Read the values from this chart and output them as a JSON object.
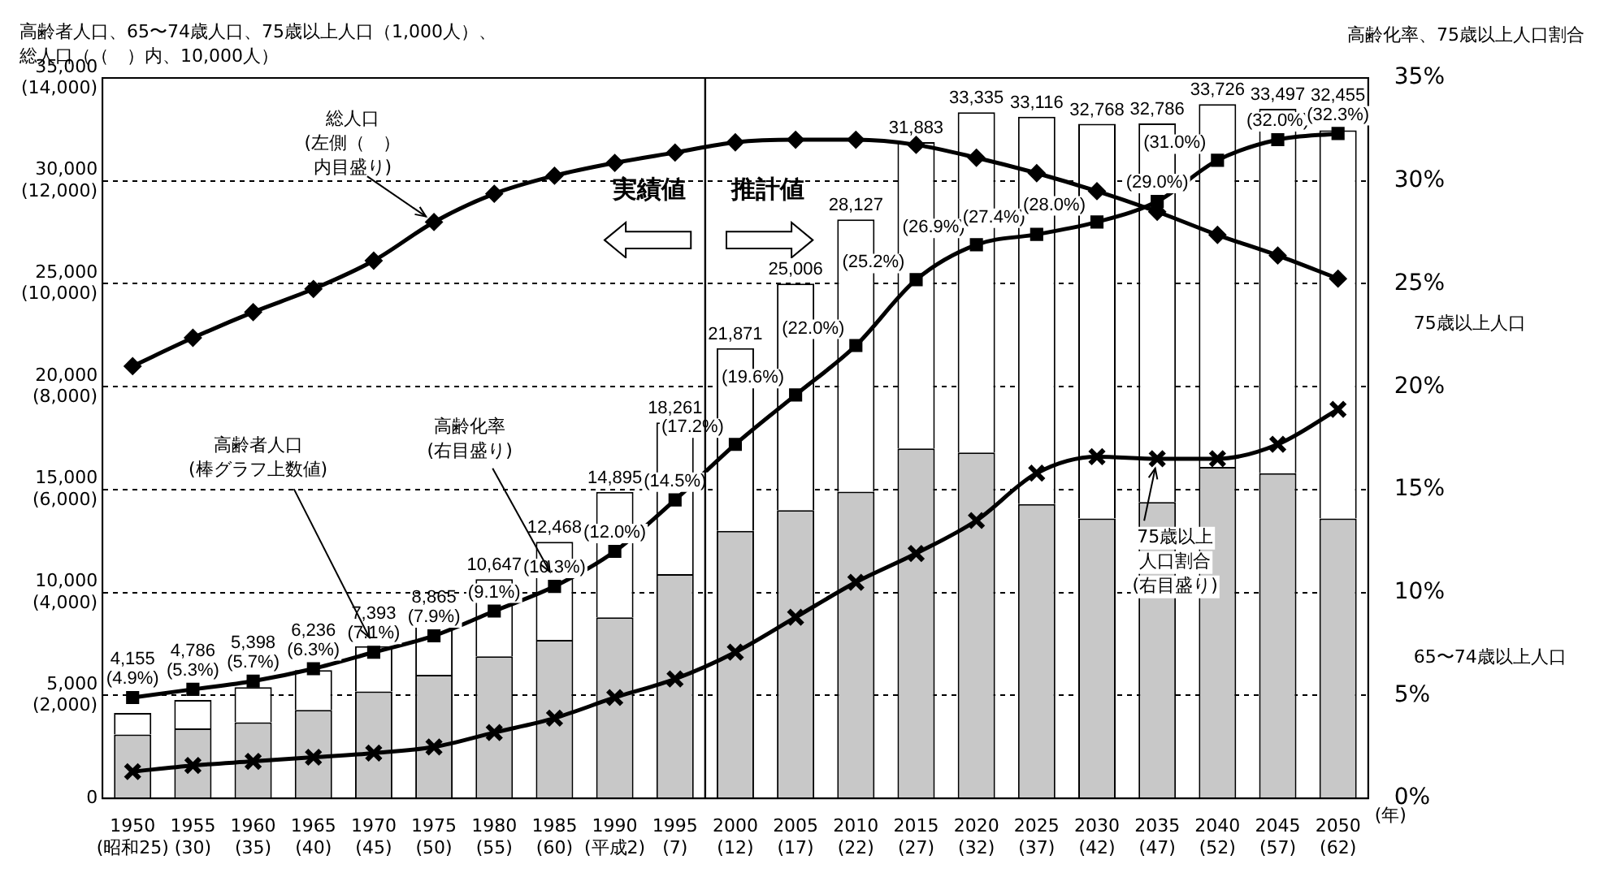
{
  "chart_data": {
    "type": "bar",
    "stacked": true,
    "grid": "y",
    "legend": "right",
    "ylabel": "高齢者人口、65〜74歳人口、75歳以上人口（1,000人）、総人口（（　）内、10,000人）",
    "y2label": "高齢化率、75歳以上人口割合",
    "xlabel": "(年)",
    "categories": [
      "1950\n(昭和25)",
      "1955\n(30)",
      "1960\n(35)",
      "1965\n(40)",
      "1970\n(45)",
      "1975\n(50)",
      "1980\n(55)",
      "1985\n(60)",
      "1990\n(平成2)",
      "1995\n(7)",
      "2000\n(12)",
      "2005\n(17)",
      "2010\n(22)",
      "2015\n(27)",
      "2020\n(32)",
      "2025\n(37)",
      "2030\n(42)",
      "2035\n(47)",
      "2040\n(52)",
      "2045\n(57)",
      "2050\n(62)"
    ],
    "series": [
      {
        "name": "65〜74歳以上人口",
        "color": "#c8c8c8",
        "values": [
          3100,
          3400,
          3700,
          4300,
          5200,
          6000,
          6900,
          7700,
          8800,
          10900,
          13000,
          14000,
          14900,
          17000,
          16800,
          14300,
          13600,
          14400,
          16100,
          15800,
          13600
        ]
      },
      {
        "name": "75歳以上人口",
        "color": "#ffffff",
        "values": [
          1055,
          1386,
          1698,
          1936,
          2193,
          2865,
          3747,
          4768,
          6095,
          7361,
          8871,
          11006,
          13227,
          14883,
          16535,
          18816,
          19168,
          18386,
          17626,
          17697,
          18855
        ]
      },
      {
        "type": "line",
        "axis": "y3",
        "color": "#000000",
        "marker": "diamond",
        "values": [
          8400,
          8950,
          9450,
          9900,
          10450,
          11200,
          11750,
          12100,
          12350,
          12550,
          12750,
          12800,
          12800,
          12700,
          12450,
          12150,
          11800,
          11400,
          10950,
          10550,
          10100
        ]
      },
      {
        "type": "line",
        "axis": "y2",
        "color": "#000000",
        "marker": "square",
        "values": [
          4.9,
          5.3,
          5.7,
          6.3,
          7.1,
          7.9,
          9.1,
          10.3,
          12.0,
          14.5,
          17.2,
          19.6,
          22.0,
          25.2,
          26.9,
          27.4,
          28.0,
          29.0,
          31.0,
          32.0,
          32.3
        ],
        "value_labels": [
          "(4.9%)",
          "(5.3%)",
          "(5.7%)",
          "(6.3%)",
          "(7.1%)",
          "(7.9%)",
          "(9.1%)",
          "(10.3%)",
          "(12.0%)",
          "(14.5%)",
          "(17.2%)",
          "(19.6%)",
          "(22.0%)",
          "(25.2%)",
          "(26.9%)",
          "(27.4%)",
          "(28.0%)",
          "(29.0%)",
          "(31.0%)",
          "(32.0%)",
          "(32.3%)"
        ]
      },
      {
        "type": "line",
        "axis": "y2",
        "color": "#000000",
        "marker": "cross",
        "values": [
          1.3,
          1.6,
          1.8,
          2.0,
          2.2,
          2.5,
          3.2,
          3.9,
          4.9,
          5.8,
          7.1,
          8.8,
          10.5,
          11.9,
          13.5,
          15.8,
          16.6,
          16.5,
          16.5,
          17.2,
          18.9
        ]
      }
    ],
    "totals": [
      "4,155",
      "4,786",
      "5,398",
      "6,236",
      "7,393",
      "8,865",
      "10,647",
      "12,468",
      "14,895",
      "18,261",
      "21,871",
      "25,006",
      "28,127",
      "31,883",
      "33,335",
      "33,116",
      "32,768",
      "32,786",
      "33,726",
      "33,497",
      "32,455"
    ],
    "ylim": [
      0,
      35000
    ],
    "yticks": [
      {
        "value": 0,
        "label": "0"
      },
      {
        "value": 5000,
        "label": "5,000"
      },
      {
        "value": 10000,
        "label": "10,000"
      },
      {
        "value": 15000,
        "label": "15,000"
      },
      {
        "value": 20000,
        "label": "20,000"
      },
      {
        "value": 25000,
        "label": "25,000"
      },
      {
        "value": 30000,
        "label": "30,000"
      },
      {
        "value": 35000,
        "label": "35,000"
      }
    ],
    "y3lim": [
      0,
      14000
    ],
    "y3ticks": [
      {
        "value": 0,
        "label": null
      },
      {
        "value": 2000,
        "label": "(2,000)"
      },
      {
        "value": 4000,
        "label": "(4,000)"
      },
      {
        "value": 6000,
        "label": "(6,000)"
      },
      {
        "value": 8000,
        "label": "(8,000)"
      },
      {
        "value": 10000,
        "label": "(10,000)"
      },
      {
        "value": 12000,
        "label": "(12,000)"
      },
      {
        "value": 14000,
        "label": "(14,000)"
      }
    ],
    "y2lim": [
      0,
      35
    ],
    "y2ticks": [
      {
        "value": 0,
        "label": "0%"
      },
      {
        "value": 5,
        "label": "5%"
      },
      {
        "value": 10,
        "label": "10%"
      },
      {
        "value": 15,
        "label": "15%"
      },
      {
        "value": 20,
        "label": "20%"
      },
      {
        "value": 25,
        "label": "25%"
      },
      {
        "value": 30,
        "label": "30%"
      },
      {
        "value": 35,
        "label": "35%"
      }
    ],
    "ref_lines": [
      {
        "axis": "x",
        "value": "2000\n(12)"
      }
    ],
    "annotations": [
      {
        "text": "総人口(左側（　）内目盛り)",
        "x": "1975\n(50)",
        "y": 28000
      },
      {
        "text": "高齢者人口(棒グラフ上数値)",
        "x": "1970\n(45)",
        "y": 7400
      },
      {
        "text": "高齢化率(右目盛り)",
        "x": "1985\n(60)",
        "y": 10600
      },
      {
        "text": "75歳以上人口割合(右目盛り)",
        "x": "2035\n(47)",
        "y": 16500
      },
      "実績値",
      "推計値"
    ]
  }
}
